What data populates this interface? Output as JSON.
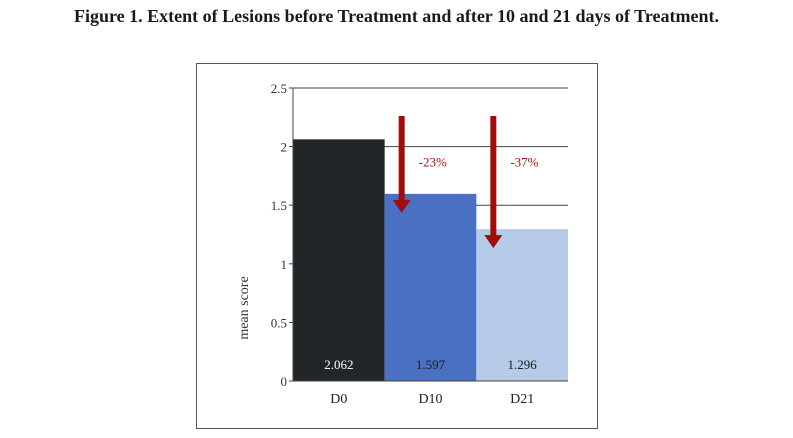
{
  "title": "Figure 1. Extent of Lesions before Treatment and after 10 and 21 days of Treatment.",
  "chart_data": {
    "type": "bar",
    "title": "Figure 1. Extent of Lesions before Treatment and after 10 and 21 days of Treatment.",
    "xlabel": "",
    "ylabel": "mean score",
    "categories": [
      "D0",
      "D10",
      "D21"
    ],
    "values": [
      2.062,
      1.597,
      1.296
    ],
    "value_labels": [
      "2.062",
      "1.597",
      "1.296"
    ],
    "yticks": [
      "0",
      "0.5",
      "1",
      "1.5",
      "2",
      "2.5"
    ],
    "ylim": [
      0,
      2.5
    ],
    "grid": true,
    "legend": "none",
    "bar_colors": [
      "#222629",
      "#4a70c4",
      "#b6cbe8"
    ],
    "value_label_colors": [
      "#ffffff",
      "#1a1a1a",
      "#1a1a1a"
    ],
    "annotations": [
      {
        "text": "-23%",
        "category": "D10",
        "arrow_color": "#a00d0d"
      },
      {
        "text": "-37%",
        "category": "D21",
        "arrow_color": "#a00d0d"
      }
    ]
  }
}
